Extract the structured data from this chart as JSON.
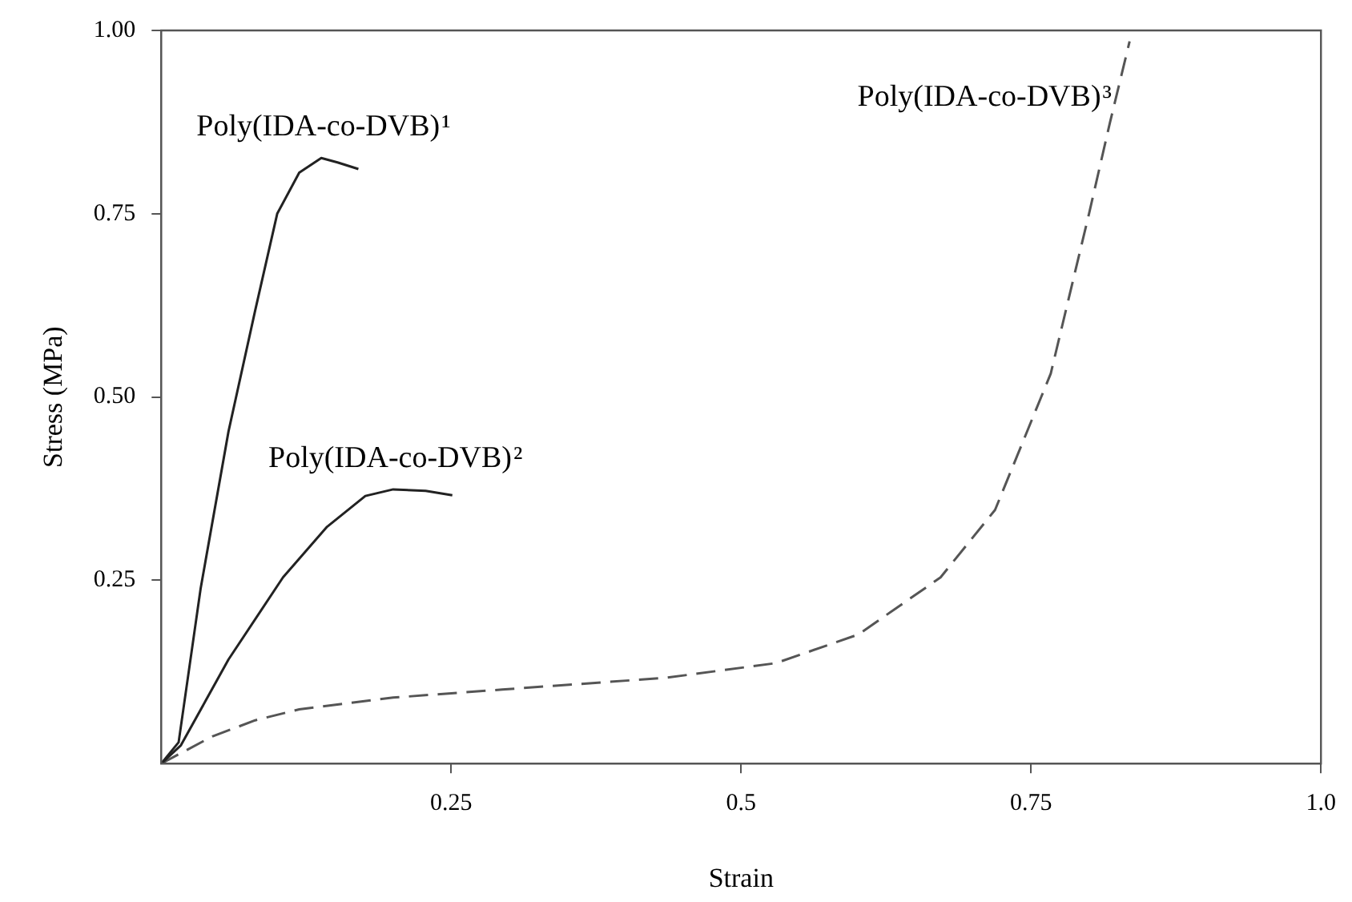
{
  "chart_data": {
    "type": "line",
    "xlabel": "Strain",
    "ylabel": "Stress (MPa)",
    "xlim": [
      0,
      1.0
    ],
    "xticks": [
      0.25,
      0.5,
      0.75,
      {
        "value": 1.0,
        "label": "1.0"
      }
    ],
    "ylim": [
      0,
      1.0
    ],
    "yticks": [
      0.25,
      {
        "value": 0.5,
        "label": "0.50"
      },
      0.75,
      {
        "value": 1.0,
        "label": "1.00"
      }
    ],
    "grid": false,
    "legend": false,
    "marker": "none",
    "series": [
      {
        "name": "Poly(IDA-co-DVB)¹",
        "color": "#222222",
        "line_style": "solid",
        "x": [
          0,
          0.015,
          0.034,
          0.058,
          0.081,
          0.1,
          0.119,
          0.138,
          0.152,
          0.17
        ],
        "values": [
          0,
          0.029,
          0.239,
          0.453,
          0.618,
          0.75,
          0.806,
          0.826,
          0.82,
          0.811
        ]
      },
      {
        "name": "Poly(IDA-co-DVB)²",
        "color": "#222222",
        "line_style": "solid",
        "x": [
          0,
          0.017,
          0.058,
          0.105,
          0.143,
          0.176,
          0.2,
          0.228,
          0.251
        ],
        "values": [
          0,
          0.025,
          0.142,
          0.254,
          0.323,
          0.365,
          0.374,
          0.372,
          0.366
        ]
      },
      {
        "name": "Poly(IDA-co-DVB)³",
        "color": "#555555",
        "line_style": "dashed",
        "x": [
          0,
          0.044,
          0.081,
          0.119,
          0.2,
          0.294,
          0.435,
          0.53,
          0.601,
          0.672,
          0.719,
          0.767,
          0.8,
          0.818,
          0.835
        ],
        "values": [
          0,
          0.037,
          0.059,
          0.074,
          0.09,
          0.101,
          0.117,
          0.137,
          0.176,
          0.254,
          0.346,
          0.532,
          0.75,
          0.874,
          0.985
        ]
      }
    ]
  }
}
